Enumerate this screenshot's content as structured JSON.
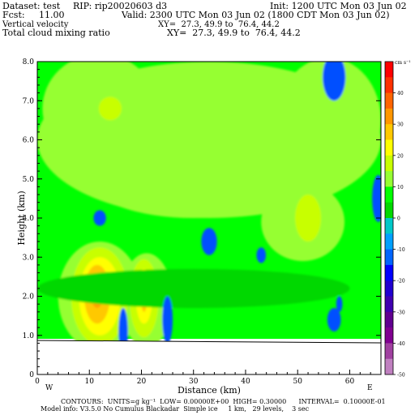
{
  "header": {
    "dataset": "Dataset: test",
    "rip": "RIP: rip20020603 d3",
    "init": "Init: 1200 UTC Mon 03 Jun 02",
    "fcst": "Fcst:     11.00",
    "valid": "Valid: 2300 UTC Mon 03 Jun 02 (1800 CDT Mon 03 Jun 02)",
    "field1": "Vertical velocity",
    "xy1": "XY=  27.3, 49.9 to  76.4, 44.2",
    "field2": "Total cloud mixing ratio",
    "xy2": "XY=  27.3, 49.9 to  76.4, 44.2"
  },
  "footer": {
    "contours": "CONTOURS:  UNITS=g kg⁻¹  LOW= 0.00000E+00  HIGH= 0.30000      INTERVAL=  0.10000E-01",
    "model": "Model info: V3.5.0 No Cumulus Blackadar  Simple ice     1 km,   29 levels,    3 sec"
  },
  "directions": {
    "west": "W",
    "east": "E"
  },
  "colorbar": {
    "units": "cm s⁻¹",
    "labels": [
      "40",
      "30",
      "20",
      "10",
      "0",
      "-10",
      "-20",
      "-30",
      "-40",
      "-50"
    ],
    "colors": [
      "#ff0000",
      "#ff3000",
      "#ff6400",
      "#ff9600",
      "#ffc800",
      "#ffff00",
      "#c8ff00",
      "#96ff32",
      "#00ff00",
      "#00d800",
      "#00c8c8",
      "#00a0ff",
      "#0064ff",
      "#0000ff",
      "#2000d0",
      "#4000b0",
      "#600090",
      "#800090",
      "#a040a0",
      "#c080c0"
    ]
  },
  "chart_data": {
    "type": "heatmap",
    "xlabel": "Distance (km)",
    "ylabel": "Height (km)",
    "xlim": [
      0,
      66
    ],
    "ylim": [
      0,
      8
    ],
    "xticks": [
      "0",
      "10",
      "20",
      "30",
      "40",
      "50",
      "60"
    ],
    "yticks": [
      "0",
      "1.0",
      "2.0",
      "3.0",
      "4.0",
      "5.0",
      "6.0",
      "7.0",
      "8.0"
    ],
    "terrain_height_km": 0.85,
    "background_color": "#00ff00",
    "field_units": "cm s⁻¹",
    "regions": [
      {
        "name": "light-green-upper-band",
        "color": "#96ff32",
        "cx": 33,
        "cy": 6.0,
        "rx": 33,
        "ry": 2.0
      },
      {
        "name": "light-green-left-lobe",
        "color": "#96ff32",
        "cx": 12,
        "cy": 6.8,
        "rx": 11,
        "ry": 1.4
      },
      {
        "name": "light-green-center-lobe",
        "color": "#96ff32",
        "cx": 30,
        "cy": 5.0,
        "rx": 20,
        "ry": 1.0
      },
      {
        "name": "light-green-right-lobe",
        "color": "#96ff32",
        "cx": 56,
        "cy": 6.5,
        "rx": 10,
        "ry": 1.6
      },
      {
        "name": "light-green-mid-right",
        "color": "#96ff32",
        "cx": 51,
        "cy": 3.9,
        "rx": 8,
        "ry": 1.0
      },
      {
        "name": "light-green-low-left",
        "color": "#96ff32",
        "cx": 12,
        "cy": 2.0,
        "rx": 8,
        "ry": 1.4
      },
      {
        "name": "light-green-low-center",
        "color": "#96ff32",
        "cx": 21,
        "cy": 1.9,
        "rx": 5,
        "ry": 1.2
      },
      {
        "name": "yellow-green-left",
        "color": "#c8ff00",
        "cx": 12,
        "cy": 2.0,
        "rx": 5.5,
        "ry": 1.25
      },
      {
        "name": "yellow-left",
        "color": "#ffff00",
        "cx": 12,
        "cy": 2.0,
        "rx": 4,
        "ry": 1.0
      },
      {
        "name": "gold-left",
        "color": "#ffc800",
        "cx": 11.5,
        "cy": 2.05,
        "rx": 2.5,
        "ry": 0.75
      },
      {
        "name": "orange-left",
        "color": "#ffa000",
        "cx": 11.5,
        "cy": 2.1,
        "rx": 1.2,
        "ry": 0.4
      },
      {
        "name": "yellow-green-center",
        "color": "#c8ff00",
        "cx": 20.5,
        "cy": 1.95,
        "rx": 2.8,
        "ry": 1.0
      },
      {
        "name": "yellow-center",
        "color": "#ffff00",
        "cx": 20.5,
        "cy": 2.0,
        "rx": 1.6,
        "ry": 0.7
      },
      {
        "name": "gold-center",
        "color": "#ffc800",
        "cx": 20.5,
        "cy": 2.0,
        "rx": 0.6,
        "ry": 0.4
      },
      {
        "name": "yellow-upper-left",
        "color": "#c8ff00",
        "cx": 14,
        "cy": 6.8,
        "rx": 2.2,
        "ry": 0.3
      },
      {
        "name": "yellow-right-blob",
        "color": "#c8ff00",
        "cx": 52,
        "cy": 4.0,
        "rx": 2.5,
        "ry": 0.6
      },
      {
        "name": "dark-green-low-band",
        "color": "#00d800",
        "cx": 30,
        "cy": 2.2,
        "rx": 30,
        "ry": 0.5
      },
      {
        "name": "blue-upper-right",
        "color": "#0050ff",
        "cx": 57,
        "cy": 7.6,
        "rx": 2.2,
        "ry": 0.6
      },
      {
        "name": "blue-right-edge",
        "color": "#0050ff",
        "cx": 65.5,
        "cy": 4.5,
        "rx": 1.2,
        "ry": 0.6
      },
      {
        "name": "blue-mid-left",
        "color": "#0050ff",
        "cx": 12,
        "cy": 4.0,
        "rx": 1.2,
        "ry": 0.2
      },
      {
        "name": "blue-mid-center",
        "color": "#0050ff",
        "cx": 33,
        "cy": 3.4,
        "rx": 1.5,
        "ry": 0.35
      },
      {
        "name": "blue-small-mid",
        "color": "#0050ff",
        "cx": 43,
        "cy": 3.05,
        "rx": 0.9,
        "ry": 0.2
      },
      {
        "name": "blue-lower-left",
        "color": "#0050ff",
        "cx": 16.5,
        "cy": 1.1,
        "rx": 0.9,
        "ry": 0.6
      },
      {
        "name": "blue-lower-center",
        "color": "#0050ff",
        "cx": 25,
        "cy": 1.4,
        "rx": 1.0,
        "ry": 0.6
      },
      {
        "name": "blue-lower-right",
        "color": "#0050ff",
        "cx": 57,
        "cy": 1.4,
        "rx": 1.3,
        "ry": 0.3
      },
      {
        "name": "blue-right-low",
        "color": "#0050ff",
        "cx": 58,
        "cy": 1.8,
        "rx": 0.6,
        "ry": 0.2
      }
    ]
  }
}
